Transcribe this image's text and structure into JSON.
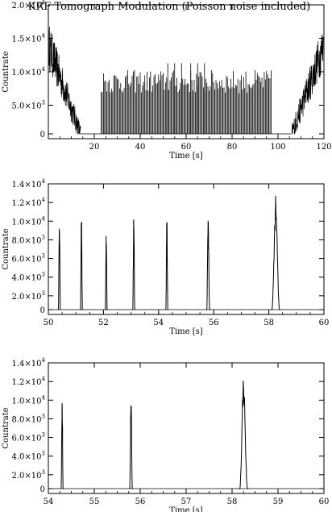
{
  "colors": {
    "background": "#ffffff",
    "ink": "#000000"
  },
  "chart_data": [
    {
      "type": "line",
      "title": "KRF Tomograph Modulation (Poisson noise included)",
      "xlabel": "Time [s]",
      "ylabel": "Countrate",
      "xlim": [
        0,
        120
      ],
      "ylim": [
        0,
        20000
      ],
      "x_ticks": [
        {
          "v": 20,
          "label": "20"
        },
        {
          "v": 40,
          "label": "40"
        },
        {
          "v": 60,
          "label": "60"
        },
        {
          "v": 80,
          "label": "80"
        },
        {
          "v": 100,
          "label": "100"
        },
        {
          "v": 120,
          "label": "120"
        }
      ],
      "y_ticks": [
        {
          "v": 0,
          "label": "0"
        },
        {
          "v": 5000,
          "label": "5.0×10",
          "exp": "3"
        },
        {
          "v": 10000,
          "label": "1.0×10",
          "exp": "4"
        },
        {
          "v": 15000,
          "label": "1.5×10",
          "exp": "4"
        },
        {
          "v": 20000,
          "label": "2.0×10",
          "exp": "4"
        }
      ],
      "grid": false,
      "series": [
        {
          "segments": [
            {
              "kind": "noise",
              "x0": 0.3,
              "x1": 14,
              "y_hi": [
                18000,
                3000
              ],
              "y_lo": [
                11000,
                0
              ]
            },
            {
              "kind": "noise",
              "x0": 106,
              "x1": 119.7,
              "y_hi": [
                3000,
                18000
              ],
              "y_lo": [
                0,
                11000
              ]
            },
            {
              "kind": "bars",
              "x0": 23,
              "x1": 97,
              "y_hi": 11000,
              "y_lo": 7500,
              "spacing": 0.5
            },
            {
              "kind": "spikes",
              "x": [
                52,
                55,
                58,
                62,
                65,
                68
              ],
              "y": 12000
            }
          ]
        }
      ]
    },
    {
      "type": "line",
      "title": "",
      "xlabel": "Time [s]",
      "ylabel": "Countrate",
      "xlim": [
        50,
        60
      ],
      "ylim": [
        0,
        14000
      ],
      "x_ticks": [
        {
          "v": 50,
          "label": "50"
        },
        {
          "v": 52,
          "label": "52"
        },
        {
          "v": 54,
          "label": "54"
        },
        {
          "v": 56,
          "label": "56"
        },
        {
          "v": 58,
          "label": "58"
        },
        {
          "v": 60,
          "label": "60"
        }
      ],
      "y_ticks": [
        {
          "v": 0,
          "label": "0"
        },
        {
          "v": 2000,
          "label": "2.0×10",
          "exp": "3"
        },
        {
          "v": 4000,
          "label": "4.0×10",
          "exp": "3"
        },
        {
          "v": 6000,
          "label": "6.0×10",
          "exp": "3"
        },
        {
          "v": 8000,
          "label": "8.0×10",
          "exp": "3"
        },
        {
          "v": 10000,
          "label": "1.0×10",
          "exp": "4"
        },
        {
          "v": 12000,
          "label": "1.2×10",
          "exp": "4"
        },
        {
          "v": 14000,
          "label": "1.4×10",
          "exp": "4"
        }
      ],
      "grid": false,
      "series": [
        {
          "peaks": [
            {
              "x": 50.4,
              "y": 10300,
              "width": 0.05
            },
            {
              "x": 51.2,
              "y": 10200,
              "width": 0.05
            },
            {
              "x": 52.1,
              "y": 8700,
              "width": 0.05
            },
            {
              "x": 53.1,
              "y": 10500,
              "width": 0.05
            },
            {
              "x": 54.3,
              "y": 10200,
              "width": 0.05
            },
            {
              "x": 55.8,
              "y": 10200,
              "width": 0.07
            },
            {
              "x": 58.25,
              "y": 11800,
              "width": 0.18
            }
          ]
        }
      ]
    },
    {
      "type": "line",
      "title": "",
      "xlabel": "Time [s]",
      "ylabel": "Countrate",
      "xlim": [
        54,
        60
      ],
      "ylim": [
        0,
        14000
      ],
      "x_ticks": [
        {
          "v": 54,
          "label": "54"
        },
        {
          "v": 55,
          "label": "55"
        },
        {
          "v": 56,
          "label": "56"
        },
        {
          "v": 57,
          "label": "57"
        },
        {
          "v": 58,
          "label": "58"
        },
        {
          "v": 59,
          "label": "59"
        },
        {
          "v": 60,
          "label": "60"
        }
      ],
      "y_ticks": [
        {
          "v": 0,
          "label": "0"
        },
        {
          "v": 2000,
          "label": "2.0×10",
          "exp": "3"
        },
        {
          "v": 4000,
          "label": "4.0×10",
          "exp": "3"
        },
        {
          "v": 6000,
          "label": "6.0×10",
          "exp": "3"
        },
        {
          "v": 8000,
          "label": "8.0×10",
          "exp": "3"
        },
        {
          "v": 10000,
          "label": "1.0×10",
          "exp": "4"
        },
        {
          "v": 12000,
          "label": "1.2×10",
          "exp": "4"
        },
        {
          "v": 14000,
          "label": "1.4×10",
          "exp": "4"
        }
      ],
      "grid": false,
      "series": [
        {
          "peaks": [
            {
              "x": 54.3,
              "y": 10200,
              "width": 0.03
            },
            {
              "x": 55.8,
              "y": 10200,
              "width": 0.04
            },
            {
              "x": 58.25,
              "y": 11900,
              "width": 0.11
            }
          ]
        }
      ]
    }
  ]
}
